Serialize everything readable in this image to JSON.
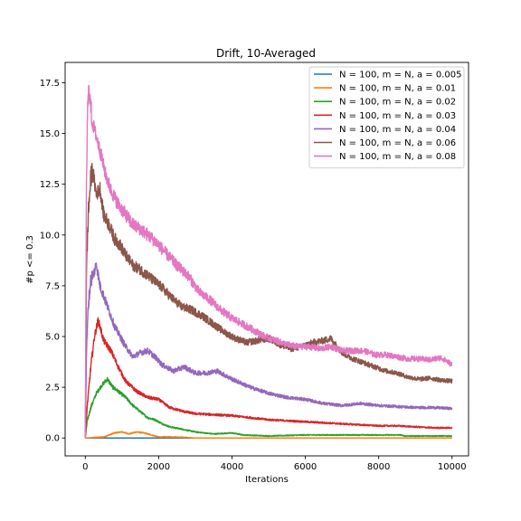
{
  "chart_data": {
    "type": "line",
    "title": "Drift, 10-Averaged",
    "xlabel": "Iterations",
    "ylabel": "#p <= 0.3",
    "xlim": [
      -550,
      10450
    ],
    "ylim": [
      -0.88,
      18.5
    ],
    "xticks": [
      0,
      2000,
      4000,
      6000,
      8000,
      10000
    ],
    "yticks": [
      0.0,
      2.5,
      5.0,
      7.5,
      10.0,
      12.5,
      15.0,
      17.5
    ],
    "xtick_labels": [
      "0",
      "2000",
      "4000",
      "6000",
      "8000",
      "10000"
    ],
    "ytick_labels": [
      "0.0",
      "2.5",
      "5.0",
      "7.5",
      "10.0",
      "12.5",
      "15.0",
      "17.5"
    ],
    "grid": false,
    "legend_position": "top-right",
    "series": [
      {
        "name": "N = 100, m = N, a = 0.005",
        "color": "#1f77b4",
        "points": [
          [
            0,
            0
          ],
          [
            10000,
            0
          ]
        ]
      },
      {
        "name": "N = 100, m = N, a = 0.01",
        "color": "#ff7f0e",
        "points": [
          [
            0,
            0
          ],
          [
            500,
            0.05
          ],
          [
            800,
            0.25
          ],
          [
            1000,
            0.3
          ],
          [
            1200,
            0.2
          ],
          [
            1400,
            0.3
          ],
          [
            1600,
            0.25
          ],
          [
            1800,
            0.15
          ],
          [
            2000,
            0.05
          ],
          [
            2500,
            0.05
          ],
          [
            3000,
            0
          ],
          [
            10000,
            0
          ]
        ]
      },
      {
        "name": "N = 100, m = N, a = 0.02",
        "color": "#2ca02c",
        "points": [
          [
            0,
            0
          ],
          [
            50,
            0.8
          ],
          [
            150,
            1.5
          ],
          [
            300,
            2.2
          ],
          [
            450,
            2.6
          ],
          [
            600,
            2.9
          ],
          [
            750,
            2.5
          ],
          [
            900,
            2.3
          ],
          [
            1100,
            2.0
          ],
          [
            1300,
            1.6
          ],
          [
            1500,
            1.3
          ],
          [
            1700,
            1.0
          ],
          [
            1900,
            0.9
          ],
          [
            2100,
            0.7
          ],
          [
            2300,
            0.55
          ],
          [
            2600,
            0.45
          ],
          [
            3000,
            0.3
          ],
          [
            3500,
            0.2
          ],
          [
            4000,
            0.25
          ],
          [
            4300,
            0.15
          ],
          [
            5000,
            0.1
          ],
          [
            6000,
            0.15
          ],
          [
            8600,
            0.15
          ],
          [
            8700,
            0.1
          ],
          [
            10000,
            0.1
          ]
        ]
      },
      {
        "name": "N = 100, m = N, a = 0.03",
        "color": "#d62728",
        "points": [
          [
            0,
            0
          ],
          [
            50,
            1.5
          ],
          [
            150,
            3.5
          ],
          [
            250,
            5.0
          ],
          [
            350,
            5.8
          ],
          [
            400,
            5.5
          ],
          [
            500,
            4.8
          ],
          [
            700,
            4.3
          ],
          [
            900,
            3.5
          ],
          [
            1100,
            2.8
          ],
          [
            1400,
            2.3
          ],
          [
            1700,
            2.0
          ],
          [
            2000,
            1.9
          ],
          [
            2300,
            1.5
          ],
          [
            2700,
            1.3
          ],
          [
            3000,
            1.2
          ],
          [
            3500,
            1.15
          ],
          [
            4000,
            1.1
          ],
          [
            4500,
            1.0
          ],
          [
            5000,
            0.9
          ],
          [
            5500,
            0.85
          ],
          [
            6000,
            0.8
          ],
          [
            6500,
            0.75
          ],
          [
            7000,
            0.7
          ],
          [
            7500,
            0.65
          ],
          [
            8000,
            0.6
          ],
          [
            8500,
            0.6
          ],
          [
            9000,
            0.55
          ],
          [
            9500,
            0.5
          ],
          [
            10000,
            0.5
          ]
        ]
      },
      {
        "name": "N = 100, m = N, a = 0.04",
        "color": "#9467bd",
        "points": [
          [
            0,
            0
          ],
          [
            30,
            4.0
          ],
          [
            80,
            6.5
          ],
          [
            150,
            7.8
          ],
          [
            250,
            8.2
          ],
          [
            300,
            8.6
          ],
          [
            400,
            7.5
          ],
          [
            500,
            7.0
          ],
          [
            600,
            6.5
          ],
          [
            700,
            6.0
          ],
          [
            800,
            5.5
          ],
          [
            950,
            5.0
          ],
          [
            1100,
            4.5
          ],
          [
            1300,
            4.0
          ],
          [
            1500,
            4.2
          ],
          [
            1700,
            4.3
          ],
          [
            1900,
            4.0
          ],
          [
            2100,
            3.6
          ],
          [
            2400,
            3.3
          ],
          [
            2700,
            3.5
          ],
          [
            3000,
            3.2
          ],
          [
            3300,
            3.2
          ],
          [
            3600,
            3.3
          ],
          [
            4000,
            2.9
          ],
          [
            4500,
            2.5
          ],
          [
            5000,
            2.2
          ],
          [
            5500,
            2.0
          ],
          [
            6000,
            1.9
          ],
          [
            6500,
            1.7
          ],
          [
            7000,
            1.6
          ],
          [
            7500,
            1.7
          ],
          [
            8000,
            1.6
          ],
          [
            8500,
            1.55
          ],
          [
            9000,
            1.5
          ],
          [
            9500,
            1.5
          ],
          [
            10000,
            1.45
          ]
        ]
      },
      {
        "name": "N = 100, m = N, a = 0.06",
        "color": "#8c564b",
        "points": [
          [
            0,
            0
          ],
          [
            30,
            8.0
          ],
          [
            80,
            11.0
          ],
          [
            150,
            12.8
          ],
          [
            200,
            13.2
          ],
          [
            300,
            12.0
          ],
          [
            400,
            12.3
          ],
          [
            500,
            11.0
          ],
          [
            650,
            10.5
          ],
          [
            800,
            9.8
          ],
          [
            950,
            9.5
          ],
          [
            1100,
            9.0
          ],
          [
            1300,
            8.5
          ],
          [
            1500,
            8.3
          ],
          [
            1700,
            8.0
          ],
          [
            1900,
            7.7
          ],
          [
            2100,
            7.4
          ],
          [
            2300,
            7.0
          ],
          [
            2600,
            6.5
          ],
          [
            2900,
            6.3
          ],
          [
            3200,
            6.0
          ],
          [
            3500,
            5.6
          ],
          [
            3800,
            5.2
          ],
          [
            4100,
            4.9
          ],
          [
            4400,
            4.7
          ],
          [
            4700,
            4.8
          ],
          [
            5000,
            4.9
          ],
          [
            5300,
            4.6
          ],
          [
            5600,
            4.4
          ],
          [
            5900,
            4.5
          ],
          [
            6200,
            4.7
          ],
          [
            6500,
            4.8
          ],
          [
            6700,
            4.9
          ],
          [
            7000,
            4.2
          ],
          [
            7300,
            3.9
          ],
          [
            7600,
            3.7
          ],
          [
            7900,
            3.5
          ],
          [
            8200,
            3.3
          ],
          [
            8500,
            3.2
          ],
          [
            8800,
            3.0
          ],
          [
            9100,
            2.9
          ],
          [
            9400,
            2.95
          ],
          [
            9700,
            2.85
          ],
          [
            10000,
            2.8
          ]
        ]
      },
      {
        "name": "N = 100, m = N, a = 0.08",
        "color": "#e377c2",
        "points": [
          [
            0,
            0
          ],
          [
            30,
            12.0
          ],
          [
            60,
            16.0
          ],
          [
            100,
            17.3
          ],
          [
            150,
            16.2
          ],
          [
            200,
            15.5
          ],
          [
            280,
            15.0
          ],
          [
            350,
            14.5
          ],
          [
            450,
            13.8
          ],
          [
            550,
            13.0
          ],
          [
            700,
            12.2
          ],
          [
            900,
            11.5
          ],
          [
            1100,
            11.0
          ],
          [
            1300,
            10.5
          ],
          [
            1500,
            10.3
          ],
          [
            1700,
            10.0
          ],
          [
            1900,
            9.7
          ],
          [
            2100,
            9.3
          ],
          [
            2300,
            8.9
          ],
          [
            2500,
            8.5
          ],
          [
            2800,
            8.0
          ],
          [
            3100,
            7.2
          ],
          [
            3400,
            6.8
          ],
          [
            3700,
            6.3
          ],
          [
            4000,
            5.9
          ],
          [
            4300,
            5.6
          ],
          [
            4600,
            5.3
          ],
          [
            4900,
            5.0
          ],
          [
            5200,
            4.8
          ],
          [
            5500,
            4.6
          ],
          [
            5800,
            4.5
          ],
          [
            6100,
            4.5
          ],
          [
            6400,
            4.4
          ],
          [
            6700,
            4.5
          ],
          [
            7000,
            4.3
          ],
          [
            7300,
            4.3
          ],
          [
            7600,
            4.3
          ],
          [
            7900,
            4.1
          ],
          [
            8200,
            4.1
          ],
          [
            8500,
            4.0
          ],
          [
            8800,
            3.9
          ],
          [
            9100,
            3.9
          ],
          [
            9400,
            3.85
          ],
          [
            9700,
            3.95
          ],
          [
            9850,
            3.8
          ],
          [
            10000,
            3.6
          ]
        ]
      }
    ]
  }
}
